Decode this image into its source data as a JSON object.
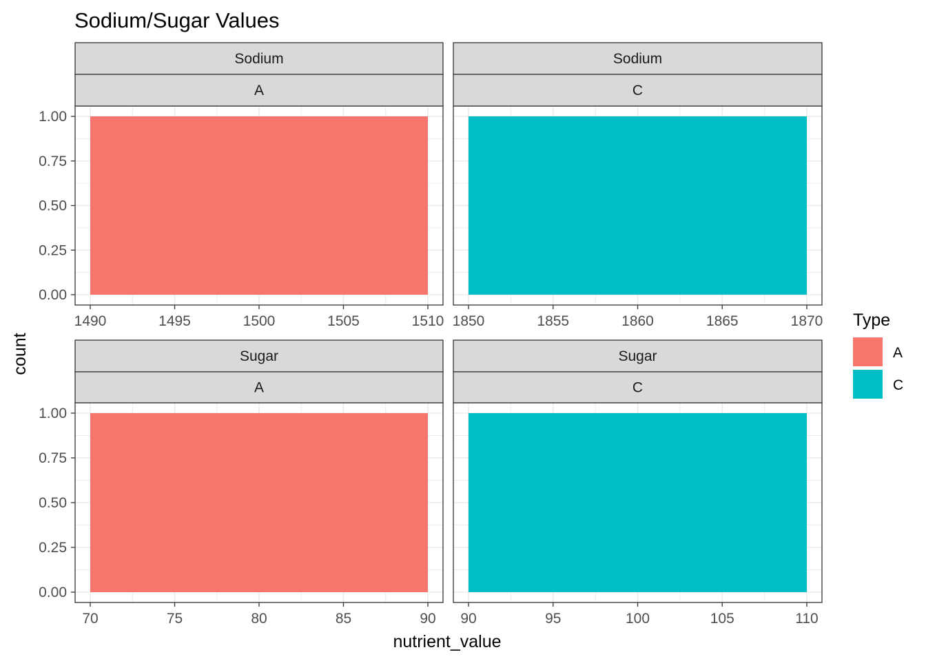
{
  "chart_data": {
    "type": "bar",
    "title": "Sodium/Sugar Values",
    "xlabel": "nutrient_value",
    "ylabel": "count",
    "grid": true,
    "legend": {
      "title": "Type",
      "position": "right",
      "entries": [
        {
          "label": "A",
          "color": "#F8766D"
        },
        {
          "label": "C",
          "color": "#00BFC4"
        }
      ]
    },
    "y_range": [
      0,
      1
    ],
    "y_ticks": [
      0,
      0.25,
      0.5,
      0.75,
      1
    ],
    "y_tick_labels": [
      "0.00",
      "0.25",
      "0.50",
      "0.75",
      "1.00"
    ],
    "panels": [
      {
        "strip_top": "Sodium",
        "strip_bottom": "A",
        "x_ticks": [
          1490,
          1495,
          1500,
          1505,
          1510
        ],
        "x_tick_labels": [
          "1490",
          "1495",
          "1500",
          "1505",
          "1510"
        ],
        "bars": [
          {
            "xmin": 1490,
            "xmax": 1510,
            "count": 1,
            "type": "A"
          }
        ]
      },
      {
        "strip_top": "Sodium",
        "strip_bottom": "C",
        "x_ticks": [
          1850,
          1855,
          1860,
          1865,
          1870
        ],
        "x_tick_labels": [
          "1850",
          "1855",
          "1860",
          "1865",
          "1870"
        ],
        "bars": [
          {
            "xmin": 1850,
            "xmax": 1870,
            "count": 1,
            "type": "C"
          }
        ]
      },
      {
        "strip_top": "Sugar",
        "strip_bottom": "A",
        "x_ticks": [
          70,
          75,
          80,
          85,
          90
        ],
        "x_tick_labels": [
          "70",
          "75",
          "80",
          "85",
          "90"
        ],
        "bars": [
          {
            "xmin": 70,
            "xmax": 90,
            "count": 1,
            "type": "A"
          }
        ]
      },
      {
        "strip_top": "Sugar",
        "strip_bottom": "C",
        "x_ticks": [
          90,
          95,
          100,
          105,
          110
        ],
        "x_tick_labels": [
          "90",
          "95",
          "100",
          "105",
          "110"
        ],
        "bars": [
          {
            "xmin": 90,
            "xmax": 110,
            "count": 1,
            "type": "C"
          }
        ]
      }
    ]
  }
}
